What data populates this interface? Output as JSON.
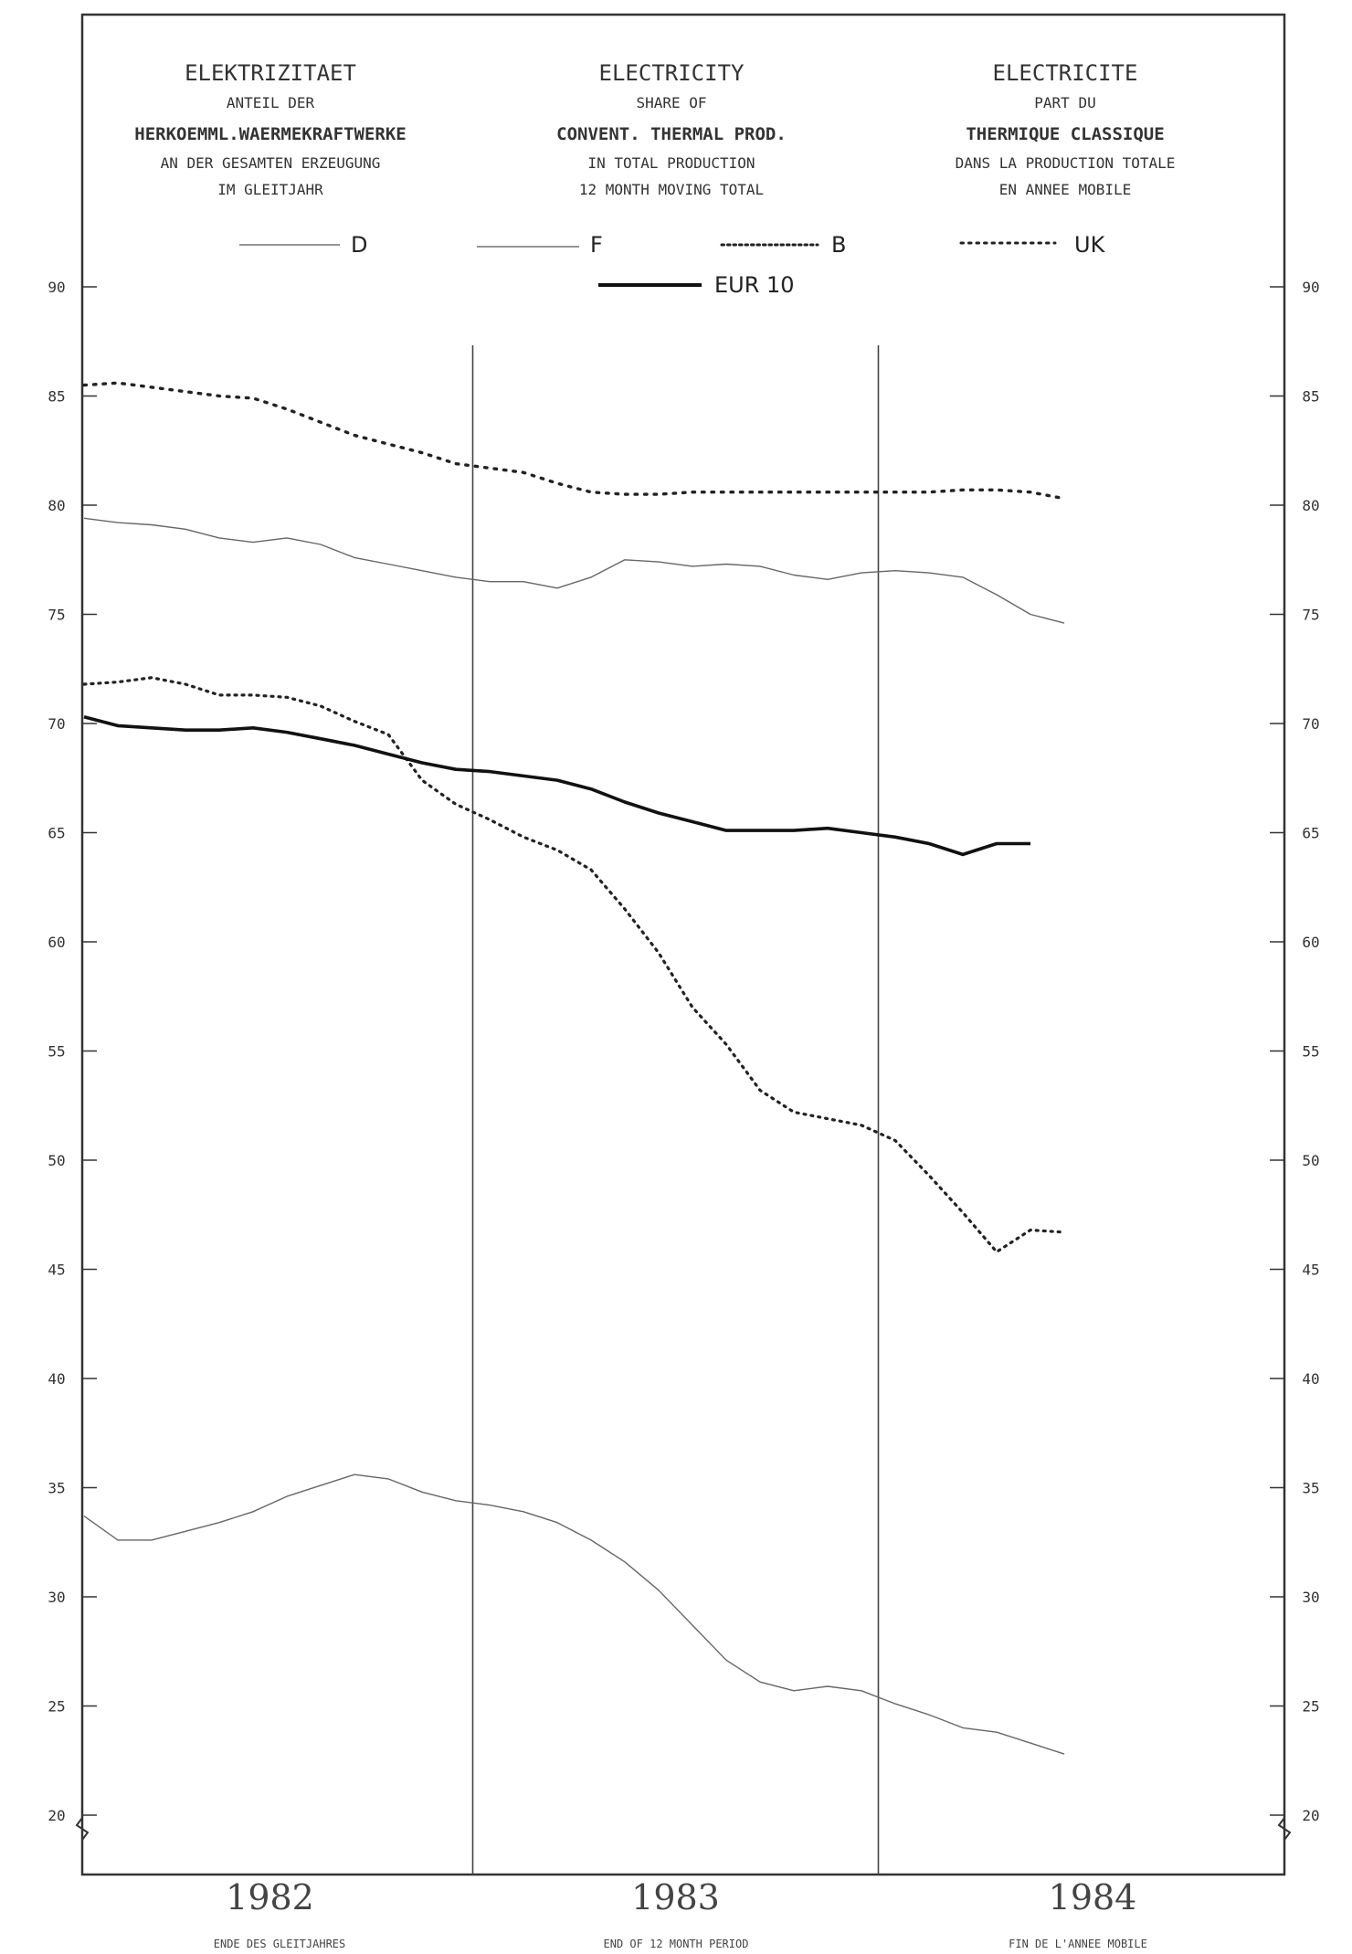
{
  "header": {
    "de": {
      "title": "ELEKTRIZITAET",
      "line1": "ANTEIL DER",
      "line2": "HERKOEMML.WAERMEKRAFTWERKE",
      "line3": "AN DER GESAMTEN ERZEUGUNG",
      "line4": "IM GLEITJAHR"
    },
    "en": {
      "title": "ELECTRICITY",
      "line1": "SHARE OF",
      "line2": "CONVENT. THERMAL PROD.",
      "line3": "IN TOTAL PRODUCTION",
      "line4": "12 MONTH MOVING TOTAL"
    },
    "fr": {
      "title": "ELECTRICITE",
      "line1": "PART DU",
      "line2": "THERMIQUE CLASSIQUE",
      "line3": "DANS LA PRODUCTION TOTALE",
      "line4": "EN ANNEE MOBILE"
    }
  },
  "footer": {
    "de": "ENDE DES GLEITJAHRES",
    "en": "END OF 12 MONTH PERIOD",
    "fr": "FIN DE L'ANNEE MOBILE"
  },
  "chart_data": {
    "type": "line",
    "x_unit": "month index (0 = first month shown, Jan 1982 period)",
    "years": [
      "1982",
      "1983",
      "1984"
    ],
    "year_boundaries_month": [
      11.5,
      23.5
    ],
    "ylim": [
      20,
      90
    ],
    "yticks": [
      20,
      25,
      30,
      35,
      40,
      45,
      50,
      55,
      60,
      65,
      70,
      75,
      80,
      85,
      90
    ],
    "legend": [
      "D",
      "F",
      "B",
      "UK",
      "EUR 10"
    ],
    "series": [
      {
        "name": "UK",
        "style": "dotted-plus",
        "x": [
          0,
          1,
          2,
          3,
          4,
          5,
          6,
          7,
          8,
          9,
          10,
          11,
          12,
          13,
          14,
          15,
          16,
          17,
          18,
          19,
          20,
          21,
          22,
          23,
          24,
          25,
          26,
          27,
          28,
          29
        ],
        "values": [
          85.5,
          85.6,
          85.4,
          85.2,
          85.0,
          84.9,
          84.4,
          83.8,
          83.2,
          82.8,
          82.4,
          81.9,
          81.7,
          81.5,
          81.0,
          80.6,
          80.5,
          80.5,
          80.6,
          80.6,
          80.6,
          80.6,
          80.6,
          80.6,
          80.6,
          80.6,
          80.7,
          80.7,
          80.6,
          80.3
        ]
      },
      {
        "name": "D",
        "style": "thin",
        "x": [
          0,
          1,
          2,
          3,
          4,
          5,
          6,
          7,
          8,
          9,
          10,
          11,
          12,
          13,
          14,
          15,
          16,
          17,
          18,
          19,
          20,
          21,
          22,
          23,
          24,
          25,
          26,
          27,
          28,
          29
        ],
        "values": [
          79.4,
          79.2,
          79.1,
          78.9,
          78.5,
          78.3,
          78.5,
          78.2,
          77.6,
          77.3,
          77.0,
          76.7,
          76.5,
          76.5,
          76.2,
          76.7,
          77.5,
          77.4,
          77.2,
          77.3,
          77.2,
          76.8,
          76.6,
          76.9,
          77.0,
          76.9,
          76.7,
          75.9,
          75.0,
          74.6
        ]
      },
      {
        "name": "B",
        "style": "dotted",
        "x": [
          0,
          1,
          2,
          3,
          4,
          5,
          6,
          7,
          8,
          9,
          10,
          11,
          12,
          13,
          14,
          15,
          16,
          17,
          18,
          19,
          20,
          21,
          22,
          23,
          24,
          25,
          26,
          27,
          28,
          29
        ],
        "values": [
          71.8,
          71.9,
          72.1,
          71.8,
          71.3,
          71.3,
          71.2,
          70.8,
          70.1,
          69.5,
          67.4,
          66.3,
          65.6,
          64.8,
          64.2,
          63.3,
          61.5,
          59.5,
          57.0,
          55.3,
          53.2,
          52.2,
          51.9,
          51.6,
          50.9,
          49.3,
          47.6,
          45.8,
          46.8,
          46.7
        ]
      },
      {
        "name": "EUR 10",
        "style": "bold",
        "x": [
          0,
          1,
          2,
          3,
          4,
          5,
          6,
          7,
          8,
          9,
          10,
          11,
          12,
          13,
          14,
          15,
          16,
          17,
          18,
          19,
          20,
          21,
          22,
          23,
          24,
          25,
          26,
          27,
          28
        ],
        "values": [
          70.3,
          69.9,
          69.8,
          69.7,
          69.7,
          69.8,
          69.6,
          69.3,
          69.0,
          68.6,
          68.2,
          67.9,
          67.8,
          67.6,
          67.4,
          67.0,
          66.4,
          65.9,
          65.5,
          65.1,
          65.1,
          65.1,
          65.2,
          65.0,
          64.8,
          64.5,
          64.0,
          64.5,
          64.5
        ]
      },
      {
        "name": "F",
        "style": "thin",
        "x": [
          0,
          1,
          2,
          3,
          4,
          5,
          6,
          7,
          8,
          9,
          10,
          11,
          12,
          13,
          14,
          15,
          16,
          17,
          18,
          19,
          20,
          21,
          22,
          23,
          24,
          25,
          26,
          27,
          28,
          29
        ],
        "values": [
          33.7,
          32.6,
          32.6,
          33.0,
          33.4,
          33.9,
          34.6,
          35.1,
          35.6,
          35.4,
          34.8,
          34.4,
          34.2,
          33.9,
          33.4,
          32.6,
          31.6,
          30.3,
          28.7,
          27.1,
          26.1,
          25.7,
          25.9,
          25.7,
          25.1,
          24.6,
          24.0,
          23.8,
          23.3,
          22.8
        ]
      }
    ]
  }
}
